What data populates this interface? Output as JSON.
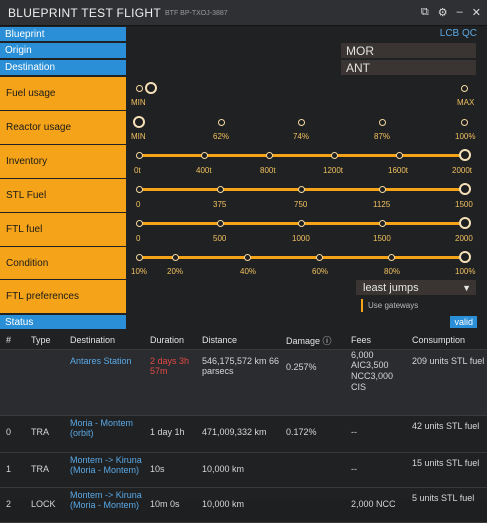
{
  "window": {
    "title": "BLUEPRINT TEST FLIGHT",
    "subtitle": "BTF BP-TXOJ-3887",
    "icons": [
      "copy-icon",
      "settings-icon",
      "minimize-icon",
      "close-icon"
    ]
  },
  "blueprint": {
    "label": "Blueprint",
    "link": "LCB QC"
  },
  "origin": {
    "label": "Origin",
    "value": "MOR"
  },
  "destination": {
    "label": "Destination",
    "value": "ANT"
  },
  "fuel_usage": {
    "label": "Fuel usage",
    "ticks": [
      "MIN",
      "MAX"
    ],
    "value_index": 0
  },
  "reactor_usage": {
    "label": "Reactor usage",
    "ticks": [
      "MIN",
      "62%",
      "74%",
      "87%",
      "100%"
    ],
    "value_index": 0
  },
  "inventory": {
    "label": "Inventory",
    "ticks": [
      "0t",
      "400t",
      "800t",
      "1200t",
      "1600t",
      "2000t"
    ],
    "value_index": 5
  },
  "stl_fuel": {
    "label": "STL Fuel",
    "ticks": [
      "0",
      "375",
      "750",
      "1125",
      "1500"
    ],
    "value_index": 4
  },
  "ftl_fuel": {
    "label": "FTL fuel",
    "ticks": [
      "0",
      "500",
      "1000",
      "1500",
      "2000"
    ],
    "value_index": 4
  },
  "condition": {
    "label": "Condition",
    "ticks": [
      "10%",
      "20%",
      "40%",
      "60%",
      "80%",
      "100%"
    ],
    "value_index": 5
  },
  "ftl_preferences": {
    "label": "FTL preferences",
    "selected": "least jumps",
    "checkbox_label": "Use gateways"
  },
  "status": {
    "label": "Status",
    "badge": "valid"
  },
  "table": {
    "headers": [
      "#",
      "Type",
      "Destination",
      "Duration",
      "Distance",
      "Damage ⓘ",
      "Fees",
      "Consumption"
    ],
    "rows": [
      {
        "num": "",
        "type": "",
        "destination": "Antares Station",
        "duration": "2 days 3h 57m",
        "distance": "546,175,572 km 66 parsecs",
        "damage": "0.257%",
        "fees": "6,000 AIC3,500 NCC3,000 CIS",
        "consumption": "209 units STL fuel"
      },
      {
        "num": "0",
        "type": "TRA",
        "destination": "Moria - Montem (orbit)",
        "duration": "1 day 1h",
        "distance": "471,009,332 km",
        "damage": "0.172%",
        "fees": "--",
        "consumption": "42 units STL fuel"
      },
      {
        "num": "1",
        "type": "TRA",
        "destination": "Montem -> Kiruna (Moria - Montem)",
        "duration": "10s",
        "distance": "10,000 km",
        "damage": "",
        "fees": "--",
        "consumption": "15 units STL fuel"
      },
      {
        "num": "2",
        "type": "LOCK",
        "destination": "Montem -> Kiruna (Moria - Montem)",
        "duration": "10m 0s",
        "distance": "10,000 km",
        "damage": "",
        "fees": "2,000 NCC",
        "consumption": "5 units STL fuel"
      }
    ]
  },
  "colors": {
    "accent_blue": "#2a8fd6",
    "accent_orange": "#f5a318",
    "danger_red": "#e34a43",
    "background": "#1e1f21"
  }
}
